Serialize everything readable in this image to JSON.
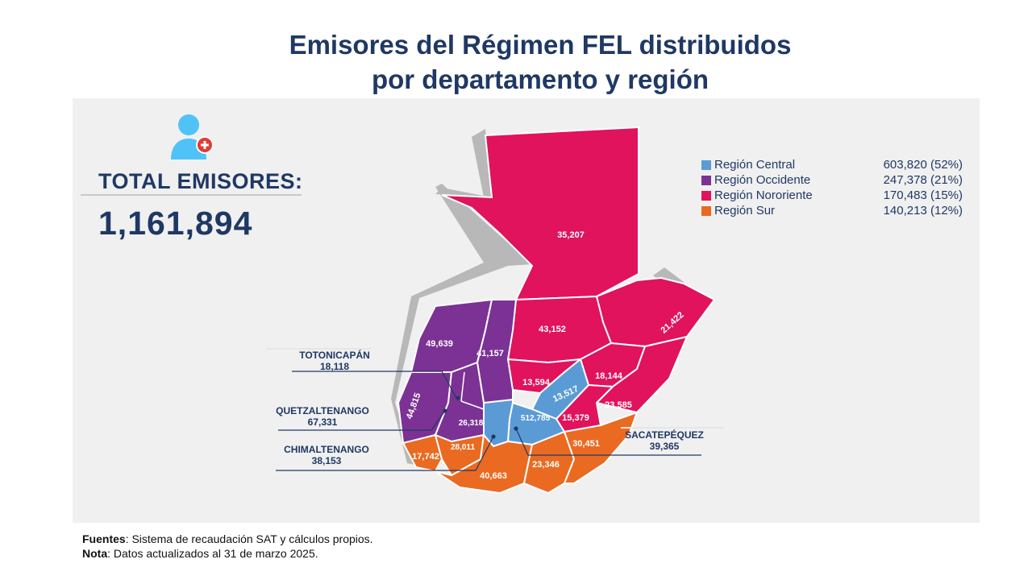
{
  "title": {
    "line1": "Emisores del Régimen FEL distribuidos",
    "line2": "por departamento y región"
  },
  "total": {
    "label": "TOTAL EMISORES:",
    "value": "1,161,894",
    "icon": "user-add-icon"
  },
  "colors": {
    "central": "#5b9bd5",
    "occidente": "#7b3294",
    "nororiente": "#e0135c",
    "sur": "#ea6a21",
    "title": "#1f3864"
  },
  "legend": [
    {
      "name": "Región Central",
      "value": "603,820 (52%)",
      "color": "#5b9bd5"
    },
    {
      "name": "Región Occidente",
      "value": "247,378 (21%)",
      "color": "#7b3294"
    },
    {
      "name": "Región Nororiente",
      "value": "170,483 (15%)",
      "color": "#e0135c"
    },
    {
      "name": "Región Sur",
      "value": "140,213 (12%)",
      "color": "#ea6a21"
    }
  ],
  "department_values": {
    "peten": "35,207",
    "alta_verapaz": "43,152",
    "izabal": "21,422",
    "huehuetenango": "49,639",
    "quiche": "41,157",
    "baja_verapaz": "13,594",
    "el_progreso": "13,517",
    "zacapa": "18,144",
    "chiquimula": "23,585",
    "jalapa": "15,379",
    "guatemala": "512,785",
    "san_marcos": "44,815",
    "solola": "26,318",
    "suchitepequez": "28,011",
    "retalhuleu": "17,742",
    "escuintla": "40,663",
    "santa_rosa": "23,346",
    "jutiapa": "30,451"
  },
  "callouts": {
    "totonicapan": {
      "name": "TOTONICAPÁN",
      "value": "18,118"
    },
    "quetzaltenango": {
      "name": "QUETZALTENANGO",
      "value": "67,331"
    },
    "chimaltenango": {
      "name": "CHIMALTENANGO",
      "value": "38,153"
    },
    "sacatepequez": {
      "name": "SACATEPÉQUEZ",
      "value": "39,365"
    }
  },
  "footer": {
    "sources_label": "Fuentes",
    "sources_text": ": Sistema de recaudación SAT y cálculos propios.",
    "note_label": "Nota",
    "note_text": ": Datos actualizados al  31 de marzo 2025."
  }
}
